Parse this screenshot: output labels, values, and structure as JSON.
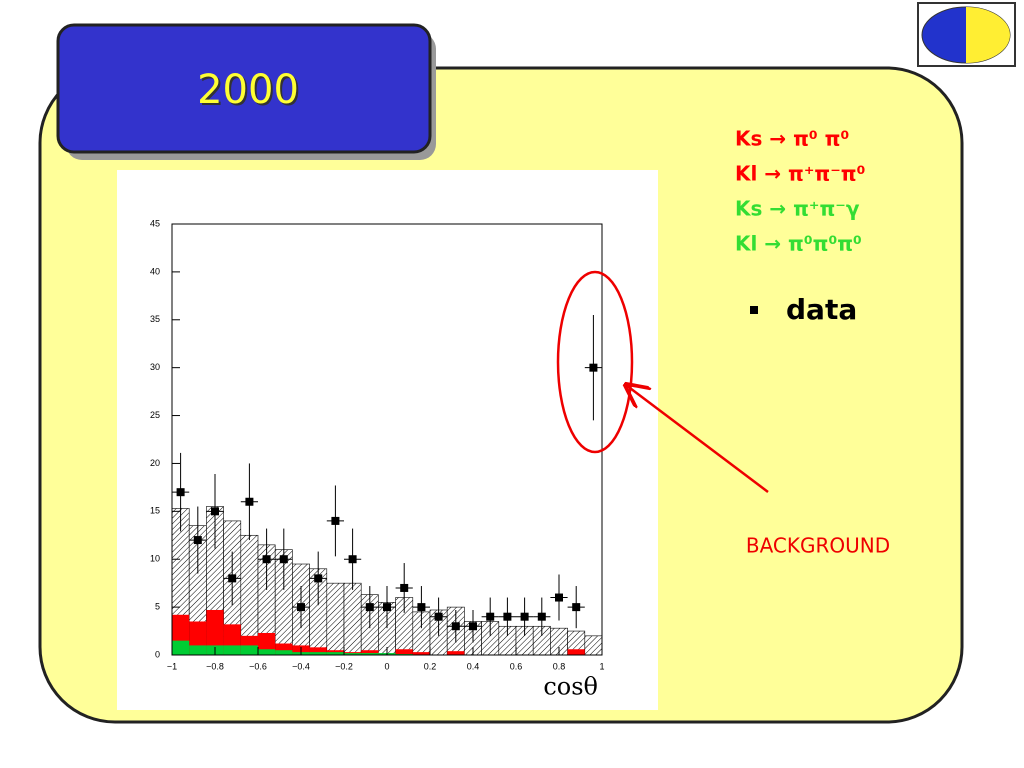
{
  "chart_data": {
    "type": "histogram",
    "title": "2000",
    "x_label": "cosθ",
    "bins": [
      -1,
      -0.92,
      -0.84,
      -0.76,
      -0.68,
      -0.6,
      -0.52,
      -0.44,
      -0.36,
      -0.28,
      -0.2,
      -0.12,
      -0.04,
      0.04,
      0.12,
      0.2,
      0.28,
      0.36,
      0.44,
      0.52,
      0.6,
      0.68,
      0.76,
      0.84,
      0.92,
      1
    ],
    "series": [
      {
        "style": "hatch",
        "color": "#000000",
        "values": [
          15.3,
          13.5,
          15.5,
          14,
          12.5,
          11.5,
          11,
          9.5,
          9,
          7.5,
          7.5,
          6.3,
          5.5,
          6,
          4.5,
          4.7,
          5,
          3.5,
          3.5,
          3,
          3,
          3,
          2.8,
          2.5,
          2
        ]
      },
      {
        "style": "solid",
        "color": "#ff0000",
        "values": [
          4.2,
          3.5,
          4.7,
          3.2,
          2,
          2.3,
          1.2,
          1,
          0.8,
          0.5,
          0.3,
          0.5,
          0.1,
          0.6,
          0.3,
          0,
          0.4,
          0,
          0,
          0,
          0,
          0,
          0,
          0.6,
          0
        ]
      },
      {
        "style": "solid",
        "color": "#00cc33",
        "values": [
          1.5,
          1,
          1,
          1,
          1,
          0.6,
          0.5,
          0.3,
          0.3,
          0.3,
          0.2,
          0.2,
          0.2,
          0.1,
          0,
          0,
          0,
          0,
          0,
          0,
          0,
          0,
          0,
          0,
          0
        ]
      },
      {
        "style": "points",
        "color": "#000000",
        "values": [
          17,
          12,
          15,
          8,
          16,
          10,
          10,
          5,
          8,
          14,
          10,
          5,
          5,
          7,
          5,
          4,
          3,
          3,
          4,
          4,
          4,
          4,
          6,
          5,
          30
        ],
        "errors": [
          4.1,
          3.5,
          3.9,
          2.8,
          4,
          3.2,
          3.2,
          2.2,
          2.8,
          3.7,
          3.2,
          2.2,
          2.2,
          2.6,
          2.2,
          2,
          1.7,
          1.7,
          2,
          2,
          2,
          2,
          2.4,
          2.2,
          5.5
        ]
      }
    ],
    "xlim": [
      -1,
      1
    ],
    "xticks": [
      {
        "value": -1,
        "label": "−1"
      },
      {
        "value": -0.8,
        "label": "−0.8"
      },
      {
        "value": -0.6,
        "label": "−0.6"
      },
      {
        "value": -0.4,
        "label": "−0.4"
      },
      {
        "value": -0.2,
        "label": "−0.2"
      },
      0,
      0.2,
      0.4,
      0.6,
      0.8,
      1
    ],
    "ylim": [
      0,
      45
    ],
    "yticks": [
      0,
      5,
      10,
      15,
      20,
      25,
      30,
      35,
      40,
      45
    ],
    "legend": [
      {
        "label": "Ks → π⁰ π⁰",
        "color": "#ff0000"
      },
      {
        "label": "Kl → π⁺π⁻π⁰",
        "color": "#ff0000"
      },
      {
        "label": "Ks → π⁺π⁻γ",
        "color": "#33dd33"
      },
      {
        "label": "Kl → π⁰π⁰π⁰",
        "color": "#33dd33"
      }
    ],
    "data_label": "data",
    "annotation": "BACKGROUND"
  }
}
